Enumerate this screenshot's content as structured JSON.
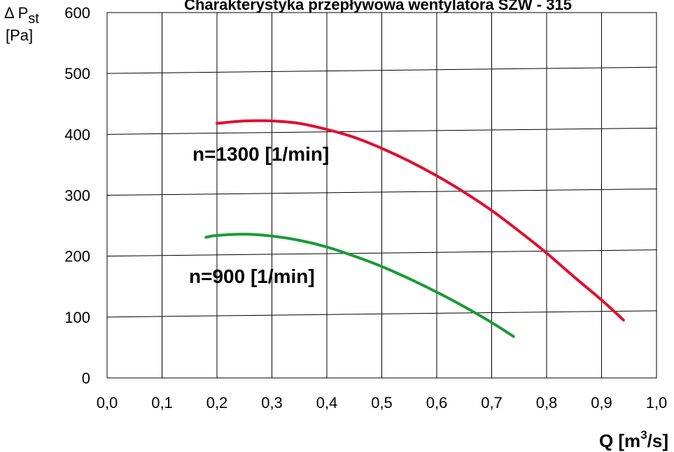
{
  "chart_data": {
    "type": "line",
    "title": "Charakterystyka przepływowa wentylatora SZW - 315",
    "ylabel_symbol": "Δ P",
    "ylabel_subscript": "st",
    "ylabel_unit": "[Pa]",
    "xlabel_main": "Q [m",
    "xlabel_sup": "3",
    "xlabel_tail": "/s]",
    "xlim": [
      0.0,
      1.0
    ],
    "ylim": [
      0,
      600
    ],
    "xticks": [
      "0,0",
      "0,1",
      "0,2",
      "0,3",
      "0,4",
      "0,5",
      "0,6",
      "0,7",
      "0,8",
      "0,9",
      "1,0"
    ],
    "yticks": [
      "0",
      "100",
      "200",
      "300",
      "400",
      "500",
      "600"
    ],
    "grid": true,
    "series": [
      {
        "name": "n=1300 [1/min]",
        "color": "#e0102e",
        "points": [
          [
            0.2,
            418
          ],
          [
            0.25,
            422
          ],
          [
            0.3,
            422
          ],
          [
            0.35,
            418
          ],
          [
            0.4,
            408
          ],
          [
            0.45,
            395
          ],
          [
            0.5,
            377
          ],
          [
            0.55,
            356
          ],
          [
            0.6,
            332
          ],
          [
            0.65,
            305
          ],
          [
            0.7,
            275
          ],
          [
            0.75,
            241
          ],
          [
            0.8,
            205
          ],
          [
            0.85,
            166
          ],
          [
            0.9,
            128
          ],
          [
            0.94,
            95
          ]
        ]
      },
      {
        "name": "n=900 [1/min]",
        "color": "#1a9a36",
        "points": [
          [
            0.18,
            231
          ],
          [
            0.2,
            234
          ],
          [
            0.25,
            236
          ],
          [
            0.3,
            233
          ],
          [
            0.35,
            226
          ],
          [
            0.4,
            215
          ],
          [
            0.45,
            200
          ],
          [
            0.5,
            183
          ],
          [
            0.55,
            163
          ],
          [
            0.6,
            141
          ],
          [
            0.65,
            117
          ],
          [
            0.7,
            91
          ],
          [
            0.74,
            68
          ]
        ]
      }
    ]
  }
}
